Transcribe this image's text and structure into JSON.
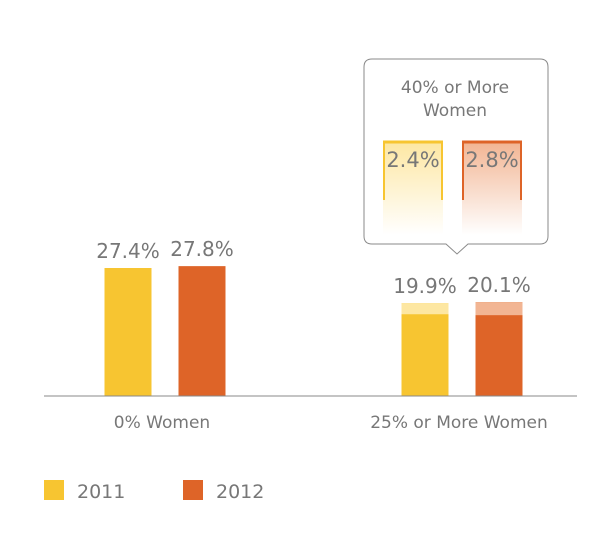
{
  "colors": {
    "s2011": "#f7c531",
    "s2012": "#de6428",
    "s2011_light": "#fde7a2",
    "s2012_light": "#f2b593",
    "text": "#777777",
    "axis": "#888888"
  },
  "chart_data": {
    "type": "bar",
    "categories": [
      "0% Women",
      "25% or More Women"
    ],
    "series": [
      {
        "name": "2011",
        "values": [
          27.4,
          19.9
        ],
        "labels": [
          "27.4%",
          "19.9%"
        ]
      },
      {
        "name": "2012",
        "values": [
          27.8,
          20.1
        ],
        "labels": [
          "27.8%",
          "20.1%"
        ]
      }
    ],
    "ylim": [
      0,
      30
    ],
    "legend_position": "bottom-left",
    "subset": {
      "category_index": 1,
      "title_lines": [
        "40% or More",
        "Women"
      ],
      "values": [
        2.4,
        2.8
      ],
      "labels": [
        "2.4%",
        "2.8%"
      ]
    }
  }
}
